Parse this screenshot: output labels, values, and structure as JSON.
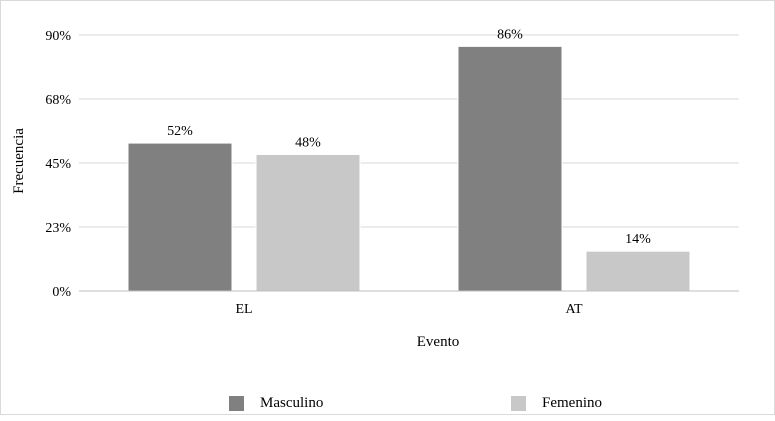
{
  "chart_data": {
    "type": "bar",
    "title": "",
    "xlabel": "Evento",
    "ylabel": "Frecuencia",
    "categories": [
      "EL",
      "AT"
    ],
    "series": [
      {
        "name": "Masculino",
        "values": [
          52,
          86
        ],
        "labels": [
          "52%",
          "86%"
        ]
      },
      {
        "name": "Femenino",
        "values": [
          48,
          14
        ],
        "labels": [
          "48%",
          "14%"
        ]
      }
    ],
    "ylim": [
      0,
      90
    ],
    "yticks": [
      0,
      22.5,
      45,
      67.5,
      90
    ],
    "yticklabels": [
      "0%",
      "23%",
      "45%",
      "68%",
      "90%"
    ],
    "grid": true,
    "legend_position": "bottom",
    "colors": [
      "#808080",
      "#c8c8c8"
    ],
    "bar_edge_color": "#ffffff",
    "grid_color": "#d9d9d9",
    "axis_color": "#bfbfbf"
  }
}
